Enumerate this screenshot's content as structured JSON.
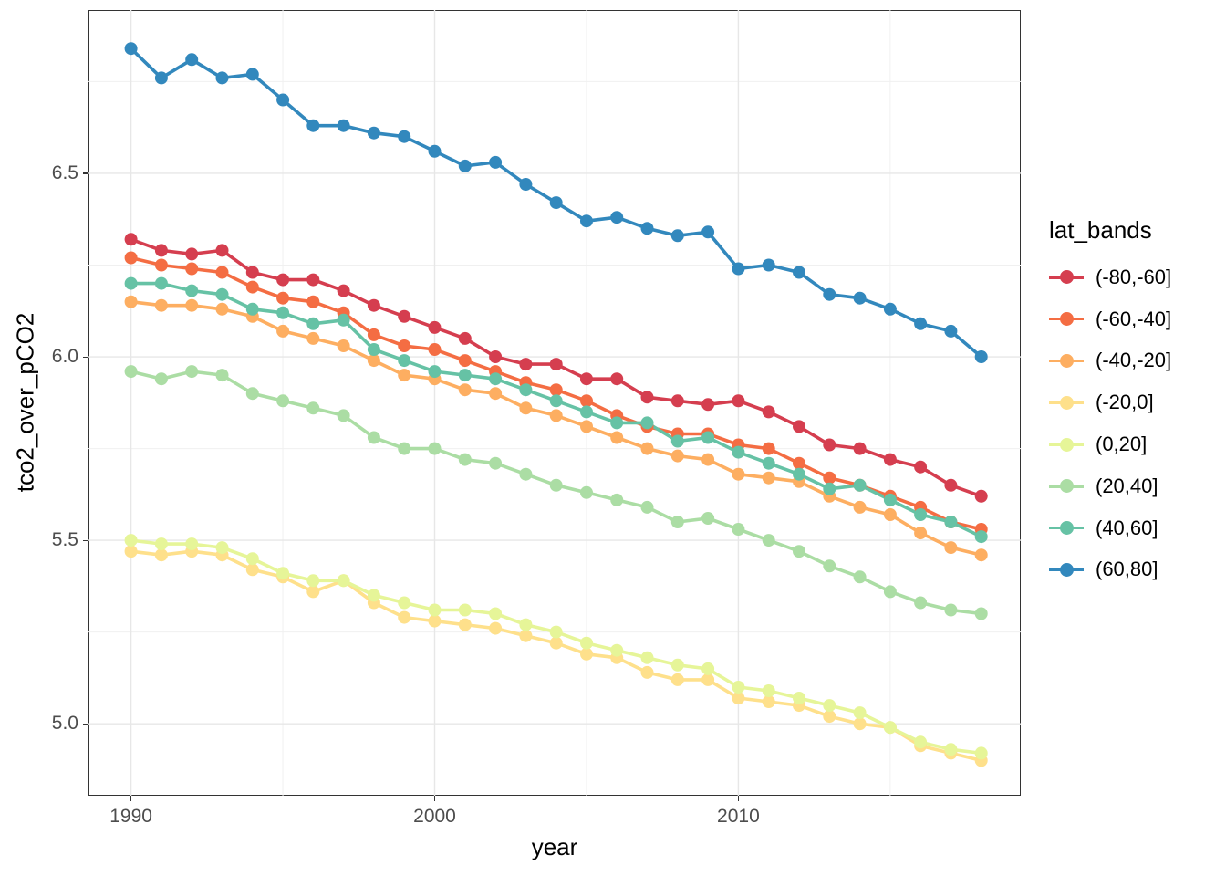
{
  "figure": {
    "xlabel": "year",
    "ylabel": "tco2_over_pCO2",
    "legend_title": "lat_bands",
    "x_tick_labels": [
      "1990",
      "2000",
      "2010"
    ],
    "y_tick_labels": [
      "5.0",
      "5.5",
      "6.0",
      "6.5"
    ],
    "colors": {
      "axis_text": "#4d4d4d",
      "axis_title": "#000000",
      "panel_border": "#333333",
      "grid_major": "#e7e7e7",
      "grid_minor": "#f0f0f0",
      "background": "#ffffff"
    }
  },
  "chart_data": {
    "type": "line",
    "title": "",
    "xlabel": "year",
    "ylabel": "tco2_over_pCO2",
    "legend_title": "lat_bands",
    "legend_position": "right",
    "grid": true,
    "points": true,
    "x_range": [
      1988.6,
      2019.3
    ],
    "y_range": [
      4.804,
      6.945
    ],
    "x_major_ticks": [
      1990,
      2000,
      2010
    ],
    "x_minor_ticks": [
      1995,
      2005,
      2015
    ],
    "y_major_ticks": [
      5.0,
      5.5,
      6.0,
      6.5
    ],
    "y_minor_ticks": [
      5.25,
      5.75,
      6.25,
      6.75
    ],
    "x": [
      1990,
      1991,
      1992,
      1993,
      1994,
      1995,
      1996,
      1997,
      1998,
      1999,
      2000,
      2001,
      2002,
      2003,
      2004,
      2005,
      2006,
      2007,
      2008,
      2009,
      2010,
      2011,
      2012,
      2013,
      2014,
      2015,
      2016,
      2017,
      2018
    ],
    "series": [
      {
        "name": "(-80,-60]",
        "color": "#D53E4F",
        "values": [
          6.32,
          6.29,
          6.28,
          6.29,
          6.23,
          6.21,
          6.21,
          6.18,
          6.14,
          6.11,
          6.08,
          6.05,
          6.0,
          5.98,
          5.98,
          5.94,
          5.94,
          5.89,
          5.88,
          5.87,
          5.88,
          5.85,
          5.81,
          5.76,
          5.75,
          5.72,
          5.7,
          5.65,
          5.62
        ]
      },
      {
        "name": "(-60,-40]",
        "color": "#F46D43",
        "values": [
          6.27,
          6.25,
          6.24,
          6.23,
          6.19,
          6.16,
          6.15,
          6.12,
          6.06,
          6.03,
          6.02,
          5.99,
          5.96,
          5.93,
          5.91,
          5.88,
          5.84,
          5.81,
          5.79,
          5.79,
          5.76,
          5.75,
          5.71,
          5.67,
          5.65,
          5.62,
          5.59,
          5.55,
          5.53
        ]
      },
      {
        "name": "(-40,-20]",
        "color": "#FDAE61",
        "values": [
          6.15,
          6.14,
          6.14,
          6.13,
          6.11,
          6.07,
          6.05,
          6.03,
          5.99,
          5.95,
          5.94,
          5.91,
          5.9,
          5.86,
          5.84,
          5.81,
          5.78,
          5.75,
          5.73,
          5.72,
          5.68,
          5.67,
          5.66,
          5.62,
          5.59,
          5.57,
          5.52,
          5.48,
          5.46
        ]
      },
      {
        "name": "(-20,0]",
        "color": "#FEE08B",
        "values": [
          5.47,
          5.46,
          5.47,
          5.46,
          5.42,
          5.4,
          5.36,
          5.39,
          5.33,
          5.29,
          5.28,
          5.27,
          5.26,
          5.24,
          5.22,
          5.19,
          5.18,
          5.14,
          5.12,
          5.12,
          5.07,
          5.06,
          5.05,
          5.02,
          5.0,
          4.99,
          4.94,
          4.92,
          4.9
        ]
      },
      {
        "name": "(0,20]",
        "color": "#E6F598",
        "values": [
          5.5,
          5.49,
          5.49,
          5.48,
          5.45,
          5.41,
          5.39,
          5.39,
          5.35,
          5.33,
          5.31,
          5.31,
          5.3,
          5.27,
          5.25,
          5.22,
          5.2,
          5.18,
          5.16,
          5.15,
          5.1,
          5.09,
          5.07,
          5.05,
          5.03,
          4.99,
          4.95,
          4.93,
          4.92
        ]
      },
      {
        "name": "(20,40]",
        "color": "#ABDDA4",
        "values": [
          5.96,
          5.94,
          5.96,
          5.95,
          5.9,
          5.88,
          5.86,
          5.84,
          5.78,
          5.75,
          5.75,
          5.72,
          5.71,
          5.68,
          5.65,
          5.63,
          5.61,
          5.59,
          5.55,
          5.56,
          5.53,
          5.5,
          5.47,
          5.43,
          5.4,
          5.36,
          5.33,
          5.31,
          5.3
        ]
      },
      {
        "name": "(40,60]",
        "color": "#66C2A5",
        "values": [
          6.2,
          6.2,
          6.18,
          6.17,
          6.13,
          6.12,
          6.09,
          6.1,
          6.02,
          5.99,
          5.96,
          5.95,
          5.94,
          5.91,
          5.88,
          5.85,
          5.82,
          5.82,
          5.77,
          5.78,
          5.74,
          5.71,
          5.68,
          5.64,
          5.65,
          5.61,
          5.57,
          5.55,
          5.51
        ]
      },
      {
        "name": "(60,80]",
        "color": "#3288BD",
        "values": [
          6.84,
          6.76,
          6.81,
          6.76,
          6.77,
          6.7,
          6.63,
          6.63,
          6.61,
          6.6,
          6.56,
          6.52,
          6.53,
          6.47,
          6.42,
          6.37,
          6.38,
          6.35,
          6.33,
          6.34,
          6.24,
          6.25,
          6.23,
          6.17,
          6.16,
          6.13,
          6.09,
          6.07,
          6.0
        ]
      }
    ]
  }
}
